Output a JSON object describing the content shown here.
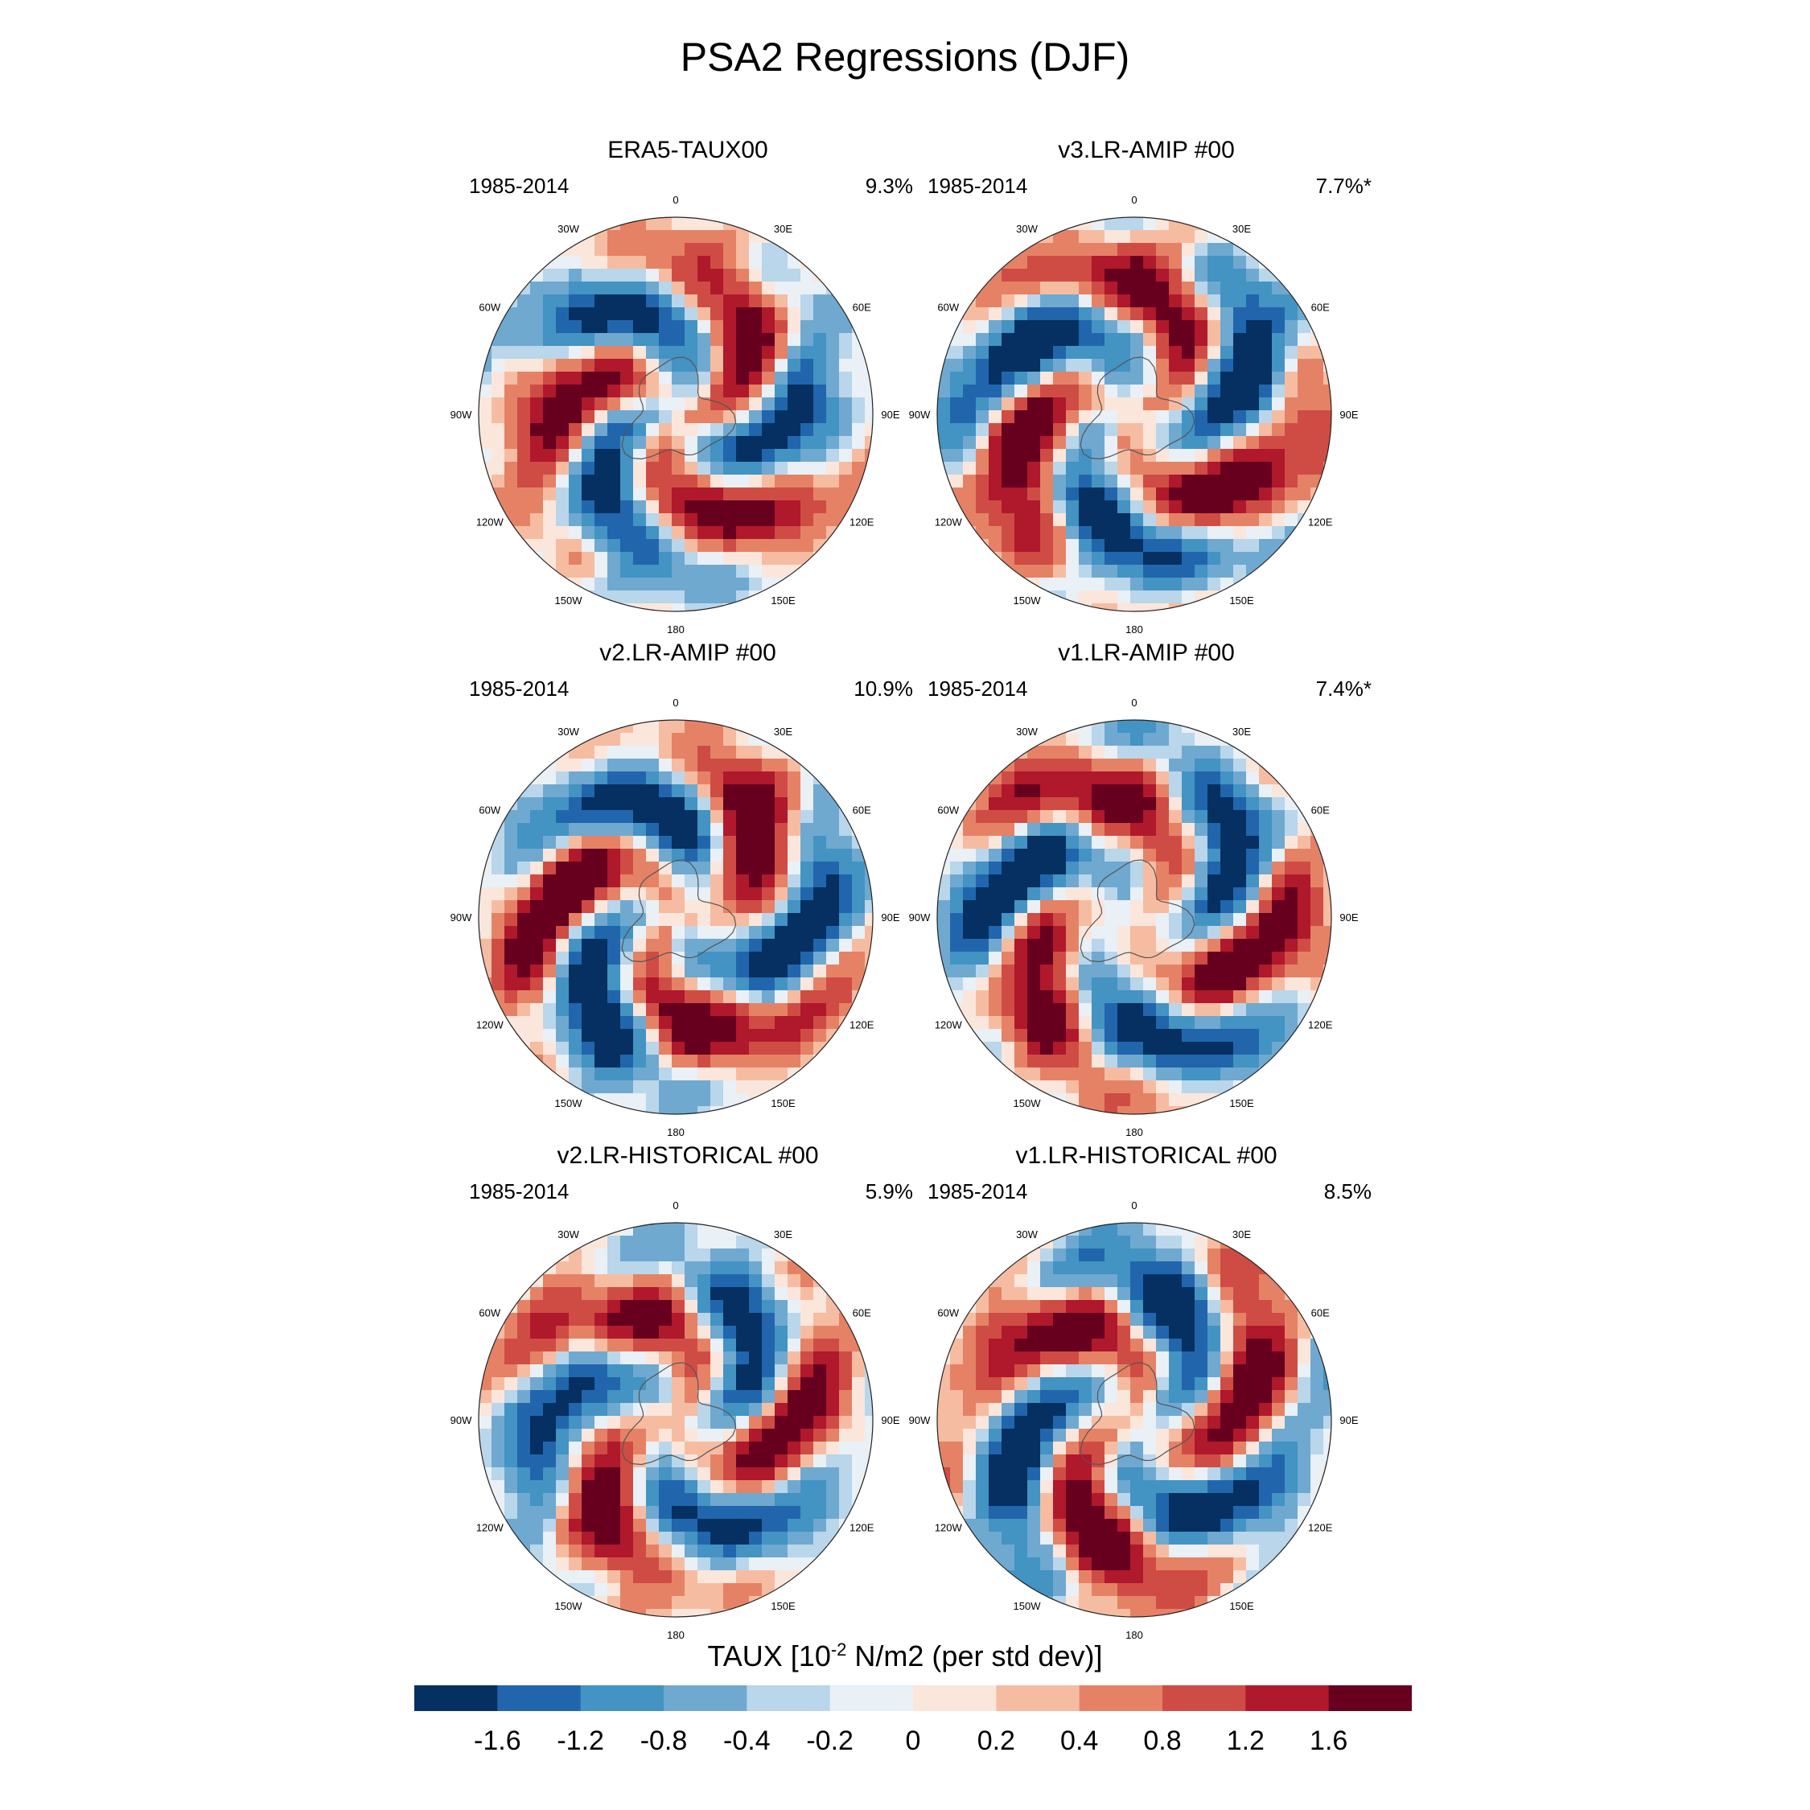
{
  "title": "PSA2 Regressions (DJF)",
  "chart_data": {
    "type": "heatmap",
    "projection": "polar stereographic, Southern Hemisphere",
    "longitude_labels": [
      "0",
      "30E",
      "60E",
      "90E",
      "120E",
      "150E",
      "180",
      "150W",
      "120W",
      "90W",
      "60W",
      "30W"
    ],
    "panels": [
      {
        "title": "ERA5-TAUX00",
        "period": "1985-2014",
        "variance_explained": "9.3%"
      },
      {
        "title": "v3.LR-AMIP  #00",
        "period": "1985-2014",
        "variance_explained": "7.7%*"
      },
      {
        "title": "v2.LR-AMIP  #00",
        "period": "1985-2014",
        "variance_explained": "10.9%"
      },
      {
        "title": "v1.LR-AMIP  #00",
        "period": "1985-2014",
        "variance_explained": "7.4%*"
      },
      {
        "title": "v2.LR-HISTORICAL  #00",
        "period": "1985-2014",
        "variance_explained": "5.9%"
      },
      {
        "title": "v1.LR-HISTORICAL  #00",
        "period": "1985-2014",
        "variance_explained": "8.5%"
      }
    ],
    "colorbar": {
      "label_prefix": "TAUX [10",
      "label_exponent": "-2",
      "label_suffix": " N/m2 (per std dev)]",
      "ticks": [
        "-1.6",
        "-1.2",
        "-0.8",
        "-0.4",
        "-0.2",
        "0",
        "0.2",
        "0.4",
        "0.8",
        "1.2",
        "1.6"
      ],
      "colors": [
        "#053061",
        "#2166ac",
        "#4393c3",
        "#6fa9d0",
        "#b9d6ea",
        "#e9f0f6",
        "#fbe6dc",
        "#f6bca1",
        "#e58266",
        "#cf4c45",
        "#b0182c",
        "#67001f"
      ]
    }
  }
}
